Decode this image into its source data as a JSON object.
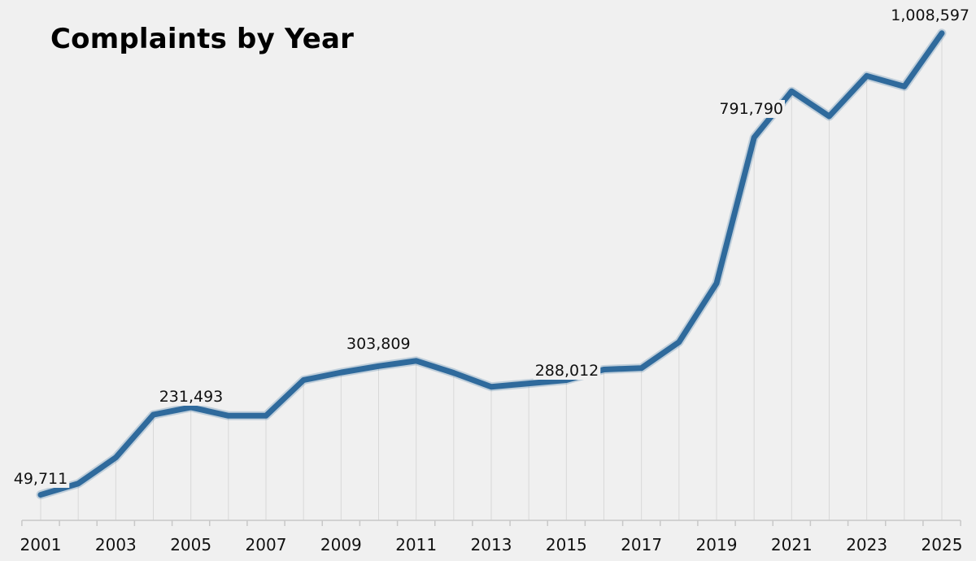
{
  "chart_data": {
    "type": "line",
    "title": "Complaints by Year",
    "xlabel": "",
    "ylabel": "",
    "x": [
      2001,
      2002,
      2003,
      2004,
      2005,
      2006,
      2007,
      2008,
      2009,
      2010,
      2011,
      2012,
      2013,
      2014,
      2015,
      2016,
      2017,
      2018,
      2019,
      2020,
      2021,
      2022,
      2023,
      2024,
      2025
    ],
    "x_tick_labels": [
      "2001",
      "2003",
      "2005",
      "2007",
      "2009",
      "2011",
      "2013",
      "2015",
      "2017",
      "2019",
      "2021",
      "2023",
      "2025"
    ],
    "series": [
      {
        "values": [
          49711,
          73000,
          127000,
          216000,
          231493,
          214000,
          214000,
          288000,
          303809,
          317000,
          328000,
          303000,
          274000,
          281000,
          288012,
          310000,
          313000,
          367000,
          489000,
          791790,
          888000,
          836000,
          920000,
          898000,
          1008597
        ]
      }
    ],
    "data_labels": [
      {
        "year": 2001,
        "text": "49,711"
      },
      {
        "year": 2005,
        "text": "231,493"
      },
      {
        "year": 2009,
        "text": "303,809"
      },
      {
        "year": 2015,
        "text": "288,012"
      },
      {
        "year": 2020,
        "text": "791,790"
      },
      {
        "year": 2025,
        "text": "1,008,597"
      }
    ],
    "ylim": [
      0,
      1077600
    ],
    "grid": "vertical",
    "legend": "none",
    "line_color": "#2f6a9c",
    "background": "#f0f0f0"
  }
}
